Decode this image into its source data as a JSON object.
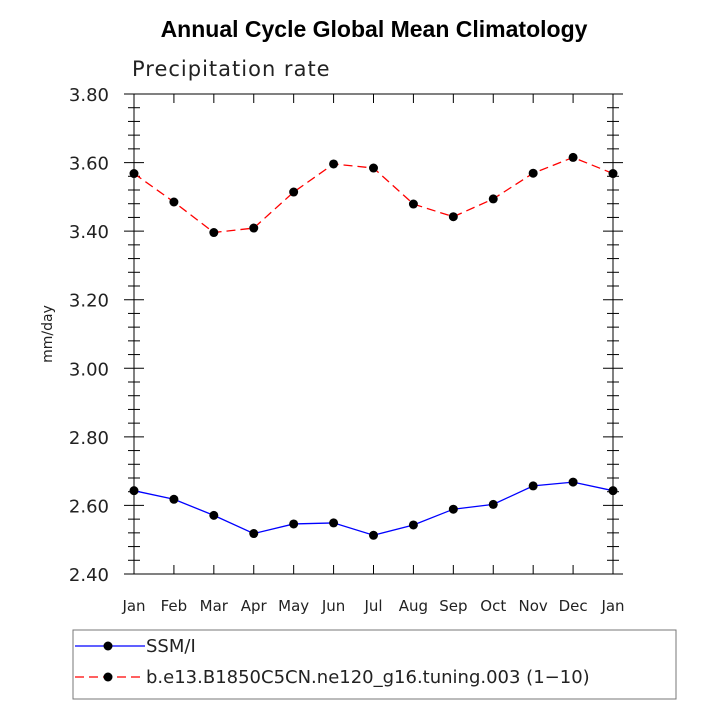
{
  "chart_data": {
    "type": "line",
    "title": "Annual Cycle Global Mean Climatology",
    "subtitle": "Precipitation rate",
    "xlabel": "",
    "ylabel": "mm/day",
    "categories": [
      "Jan",
      "Feb",
      "Mar",
      "Apr",
      "May",
      "Jun",
      "Jul",
      "Aug",
      "Sep",
      "Oct",
      "Nov",
      "Dec",
      "Jan"
    ],
    "ylim": [
      2.4,
      3.8
    ],
    "yticks": [
      "2.40",
      "2.60",
      "2.80",
      "3.00",
      "3.20",
      "3.40",
      "3.60",
      "3.80"
    ],
    "series": [
      {
        "name": "SSM/I",
        "color": "#0000ff",
        "dash": "solid",
        "values": [
          2.643,
          2.618,
          2.571,
          2.518,
          2.546,
          2.549,
          2.513,
          2.543,
          2.589,
          2.603,
          2.657,
          2.668,
          2.643
        ]
      },
      {
        "name": "b.e13.B1850C5CN.ne120_g16.tuning.003 (1−10)",
        "color": "#ff0000",
        "dash": "dashed",
        "values": [
          3.568,
          3.485,
          3.396,
          3.409,
          3.514,
          3.596,
          3.584,
          3.479,
          3.442,
          3.494,
          3.569,
          3.615,
          3.568
        ]
      }
    ],
    "legend_position": "bottom"
  }
}
